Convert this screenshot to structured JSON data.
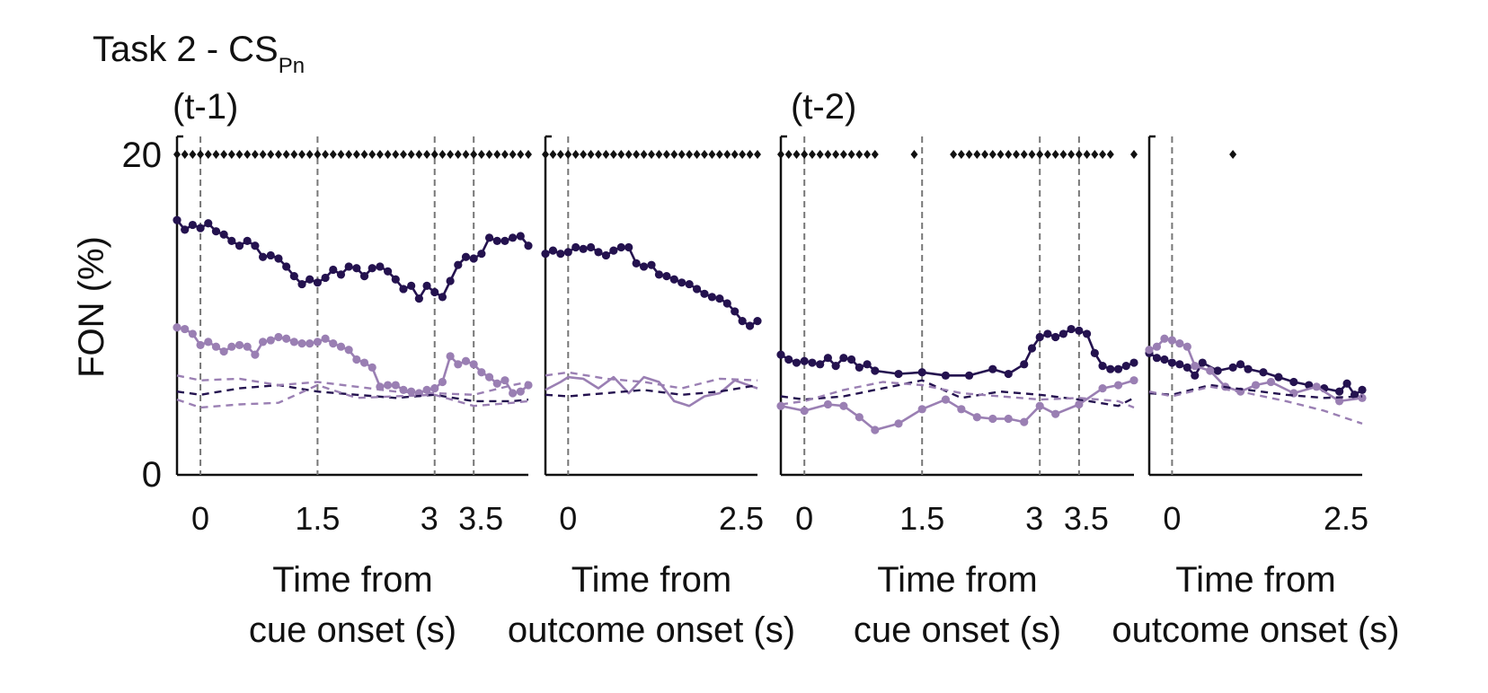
{
  "title": {
    "main": "Task 2 - CS",
    "sub": "Pn"
  },
  "group_labels": [
    "(t-1)",
    "(t-2)"
  ],
  "y_axis": {
    "label": "FON (%)",
    "ticks": [
      "0",
      "20"
    ],
    "range": [
      0,
      20
    ]
  },
  "x_label_line1": "Time from",
  "colors": {
    "dark": "#24124f",
    "light": "#9a7fb3",
    "sig": "#111111",
    "axis": "#111111",
    "vline": "#777777"
  },
  "chart_data": [
    {
      "type": "line",
      "panel": "(t-1) cue",
      "xlabel": "cue onset (s)",
      "xlim": [
        -0.3,
        4.2
      ],
      "xticks": [
        0,
        1.5,
        3,
        3.5
      ],
      "xtick_labels": [
        "0",
        "1.5",
        "3",
        "3.5"
      ],
      "vlines": [
        0,
        1.5,
        3,
        3.5
      ],
      "sig": [
        [
          -0.3,
          4.2
        ]
      ],
      "series": [
        {
          "style": "dark-solid-dots",
          "x": [
            -0.3,
            -0.2,
            -0.1,
            0,
            0.1,
            0.2,
            0.3,
            0.4,
            0.5,
            0.6,
            0.7,
            0.8,
            0.9,
            1.0,
            1.1,
            1.2,
            1.3,
            1.4,
            1.5,
            1.6,
            1.7,
            1.8,
            1.9,
            2.0,
            2.1,
            2.2,
            2.3,
            2.4,
            2.5,
            2.6,
            2.7,
            2.8,
            2.9,
            3.0,
            3.1,
            3.2,
            3.3,
            3.4,
            3.5,
            3.6,
            3.7,
            3.8,
            3.9,
            4.0,
            4.1,
            4.2
          ],
          "y": [
            15.9,
            15.3,
            15.6,
            15.4,
            15.7,
            15.2,
            15.0,
            14.6,
            14.3,
            14.6,
            14.3,
            13.6,
            13.7,
            13.5,
            13.0,
            12.4,
            11.9,
            12.2,
            12.0,
            12.3,
            12.8,
            12.5,
            13.0,
            12.9,
            12.4,
            12.9,
            13.0,
            12.7,
            12.2,
            11.6,
            11.8,
            11.0,
            11.8,
            11.4,
            11.1,
            12.1,
            13.1,
            13.6,
            13.5,
            13.8,
            14.8,
            14.6,
            14.6,
            14.8,
            14.9,
            14.3
          ]
        },
        {
          "style": "light-solid-dots",
          "x": [
            -0.3,
            -0.2,
            -0.1,
            0,
            0.1,
            0.2,
            0.3,
            0.4,
            0.5,
            0.6,
            0.7,
            0.8,
            0.9,
            1.0,
            1.1,
            1.2,
            1.3,
            1.4,
            1.5,
            1.6,
            1.7,
            1.8,
            1.9,
            2.0,
            2.1,
            2.2,
            2.3,
            2.4,
            2.5,
            2.6,
            2.7,
            2.8,
            2.9,
            3.0,
            3.1,
            3.2,
            3.3,
            3.4,
            3.5,
            3.6,
            3.7,
            3.8,
            3.9,
            4.0,
            4.1,
            4.2
          ],
          "y": [
            9.2,
            9.1,
            8.8,
            8.1,
            8.3,
            8.0,
            7.7,
            8.0,
            8.1,
            8.0,
            7.5,
            8.3,
            8.4,
            8.6,
            8.5,
            8.3,
            8.2,
            8.2,
            8.3,
            8.5,
            8.2,
            8.0,
            7.8,
            7.2,
            7.0,
            6.7,
            5.5,
            5.6,
            5.6,
            5.3,
            5.2,
            5.1,
            5.3,
            5.4,
            5.8,
            7.4,
            6.9,
            7.1,
            6.9,
            6.4,
            6.1,
            5.7,
            5.9,
            5.1,
            5.2,
            5.6
          ]
        },
        {
          "style": "dark-dashed",
          "x": [
            -0.3,
            0,
            0.5,
            1.0,
            1.5,
            2.0,
            2.5,
            3.0,
            3.5,
            4.0,
            4.2
          ],
          "y": [
            5.2,
            5.0,
            5.4,
            5.6,
            5.2,
            5.0,
            4.8,
            5.0,
            4.6,
            4.6,
            4.7
          ]
        },
        {
          "style": "light-dashed",
          "x": [
            -0.3,
            0,
            0.5,
            1.0,
            1.5,
            2.0,
            2.5,
            3.0,
            3.5,
            4.0,
            4.2
          ],
          "y": [
            4.7,
            4.2,
            4.4,
            4.5,
            5.6,
            4.8,
            4.9,
            5.0,
            4.3,
            4.5,
            4.6
          ]
        },
        {
          "style": "light-dashed",
          "x": [
            -0.3,
            0,
            0.5,
            1.0,
            1.5,
            2.0,
            2.5,
            3.0,
            3.5,
            4.0,
            4.2
          ],
          "y": [
            6.2,
            5.9,
            6.0,
            5.6,
            5.8,
            5.5,
            5.2,
            5.1,
            5.0,
            5.6,
            5.8
          ]
        }
      ]
    },
    {
      "type": "line",
      "panel": "(t-1) outcome",
      "xlabel": "outcome onset (s)",
      "xlim": [
        -0.3,
        2.5
      ],
      "xticks": [
        0,
        2.5
      ],
      "xtick_labels": [
        "0",
        "2.5"
      ],
      "vlines": [
        0
      ],
      "sig": [
        [
          -0.3,
          2.5
        ]
      ],
      "series": [
        {
          "style": "dark-solid-dots",
          "x": [
            -0.3,
            -0.2,
            -0.1,
            0,
            0.1,
            0.2,
            0.3,
            0.4,
            0.5,
            0.6,
            0.7,
            0.8,
            0.9,
            1.0,
            1.1,
            1.2,
            1.3,
            1.4,
            1.5,
            1.6,
            1.7,
            1.8,
            1.9,
            2.0,
            2.1,
            2.2,
            2.3,
            2.4,
            2.5
          ],
          "y": [
            13.8,
            14.0,
            13.8,
            13.9,
            14.2,
            14.1,
            14.2,
            13.9,
            13.7,
            14.0,
            14.2,
            14.2,
            13.2,
            13.0,
            13.1,
            12.5,
            12.4,
            12.2,
            12.0,
            11.9,
            11.6,
            11.3,
            11.1,
            11.0,
            10.7,
            10.2,
            9.6,
            9.3,
            9.6
          ]
        },
        {
          "style": "light-solid",
          "x": [
            -0.3,
            -0.1,
            0,
            0.2,
            0.4,
            0.6,
            0.8,
            1.0,
            1.2,
            1.4,
            1.6,
            1.8,
            2.0,
            2.2,
            2.5
          ],
          "y": [
            5.3,
            5.8,
            6.1,
            6.0,
            5.4,
            6.1,
            5.1,
            6.1,
            5.8,
            4.6,
            4.3,
            4.9,
            5.1,
            5.9,
            5.4
          ]
        },
        {
          "style": "dark-dashed",
          "x": [
            -0.3,
            0,
            0.5,
            1.0,
            1.5,
            2.0,
            2.5
          ],
          "y": [
            5.0,
            4.9,
            5.1,
            5.3,
            5.0,
            5.2,
            5.6
          ]
        },
        {
          "style": "light-dashed",
          "x": [
            -0.3,
            0,
            0.5,
            1.0,
            1.5,
            2.0,
            2.5
          ],
          "y": [
            6.2,
            6.4,
            6.0,
            5.8,
            5.4,
            6.0,
            5.9
          ]
        }
      ]
    },
    {
      "type": "line",
      "panel": "(t-2) cue",
      "xlabel": "cue onset (s)",
      "xlim": [
        -0.3,
        4.2
      ],
      "xticks": [
        0,
        1.5,
        3,
        3.5
      ],
      "xtick_labels": [
        "0",
        "1.5",
        "3",
        "3.5"
      ],
      "vlines": [
        0,
        1.5,
        3,
        3.5
      ],
      "sig": [
        [
          -0.3,
          0.9
        ],
        [
          1.4,
          1.4
        ],
        [
          1.9,
          3.9
        ],
        [
          4.2,
          4.2
        ]
      ],
      "series": [
        {
          "style": "dark-solid-dots",
          "x": [
            -0.3,
            -0.2,
            -0.1,
            0,
            0.1,
            0.2,
            0.3,
            0.4,
            0.5,
            0.6,
            0.7,
            0.8,
            0.9,
            1.2,
            1.5,
            1.8,
            2.1,
            2.4,
            2.6,
            2.8,
            2.9,
            3.0,
            3.1,
            3.2,
            3.3,
            3.4,
            3.5,
            3.6,
            3.7,
            3.8,
            3.9,
            4.0,
            4.1,
            4.2
          ],
          "y": [
            7.5,
            7.2,
            7.0,
            7.1,
            7.0,
            6.9,
            7.3,
            6.8,
            7.3,
            7.2,
            6.7,
            6.9,
            6.5,
            6.3,
            6.4,
            6.2,
            6.2,
            6.6,
            6.3,
            6.9,
            7.9,
            8.6,
            8.8,
            8.6,
            8.8,
            9.1,
            9.0,
            8.8,
            7.6,
            6.8,
            6.6,
            6.6,
            6.8,
            7.0
          ]
        },
        {
          "style": "light-solid-dots",
          "x": [
            -0.3,
            0,
            0.3,
            0.5,
            0.7,
            0.9,
            1.2,
            1.5,
            1.8,
            2.0,
            2.2,
            2.4,
            2.6,
            2.8,
            3.0,
            3.2,
            3.5,
            3.8,
            4.0,
            4.2
          ],
          "y": [
            4.3,
            4.0,
            4.4,
            4.3,
            3.6,
            2.8,
            3.2,
            4.1,
            4.7,
            4.1,
            3.6,
            3.5,
            3.5,
            3.3,
            4.3,
            3.8,
            4.4,
            5.4,
            5.6,
            5.9
          ]
        },
        {
          "style": "dark-dashed",
          "x": [
            -0.3,
            0,
            0.5,
            1.0,
            1.5,
            2.0,
            2.5,
            3.0,
            3.5,
            4.0,
            4.2
          ],
          "y": [
            4.9,
            4.7,
            4.9,
            5.4,
            5.9,
            4.8,
            5.2,
            5.0,
            4.7,
            4.3,
            4.8
          ]
        },
        {
          "style": "light-dashed",
          "x": [
            -0.3,
            0,
            0.5,
            1.0,
            1.5,
            2.0,
            2.5,
            3.0,
            3.5,
            4.0,
            4.2
          ],
          "y": [
            4.4,
            4.6,
            5.3,
            5.8,
            5.6,
            5.1,
            4.9,
            4.7,
            4.8,
            4.6,
            4.2
          ]
        }
      ]
    },
    {
      "type": "line",
      "panel": "(t-2) outcome",
      "xlabel": "outcome onset (s)",
      "xlim": [
        -0.3,
        2.5
      ],
      "xticks": [
        0,
        2.5
      ],
      "xtick_labels": [
        "0",
        "2.5"
      ],
      "vlines": [
        0
      ],
      "sig": [
        [
          0.8,
          0.8
        ]
      ],
      "series": [
        {
          "style": "dark-solid-dots",
          "x": [
            -0.3,
            -0.2,
            -0.1,
            0,
            0.1,
            0.2,
            0.3,
            0.4,
            0.6,
            0.8,
            0.9,
            1.0,
            1.2,
            1.4,
            1.6,
            1.8,
            2.0,
            2.2,
            2.3,
            2.4,
            2.5
          ],
          "y": [
            7.6,
            7.3,
            7.2,
            7.0,
            6.9,
            6.7,
            6.2,
            7.0,
            6.5,
            6.7,
            6.9,
            6.6,
            6.4,
            6.1,
            5.8,
            5.6,
            5.4,
            5.2,
            5.7,
            5.0,
            5.3
          ]
        },
        {
          "style": "light-solid-dots",
          "x": [
            -0.3,
            -0.2,
            -0.1,
            0,
            0.1,
            0.2,
            0.3,
            0.5,
            0.7,
            0.9,
            1.1,
            1.3,
            1.6,
            1.9,
            2.2,
            2.5
          ],
          "y": [
            7.8,
            8.0,
            8.5,
            8.4,
            8.2,
            8.0,
            6.8,
            6.5,
            5.5,
            5.2,
            5.6,
            5.8,
            5.1,
            5.5,
            4.6,
            4.8
          ]
        },
        {
          "style": "dark-dashed",
          "x": [
            -0.3,
            0,
            0.5,
            1.0,
            1.5,
            2.0,
            2.5
          ],
          "y": [
            5.1,
            5.0,
            5.6,
            5.3,
            5.0,
            4.8,
            4.9
          ]
        },
        {
          "style": "light-dashed",
          "x": [
            -0.3,
            0,
            0.5,
            1.0,
            1.5,
            2.0,
            2.5
          ],
          "y": [
            5.2,
            4.9,
            5.5,
            5.1,
            4.6,
            4.0,
            3.2
          ]
        }
      ]
    }
  ]
}
